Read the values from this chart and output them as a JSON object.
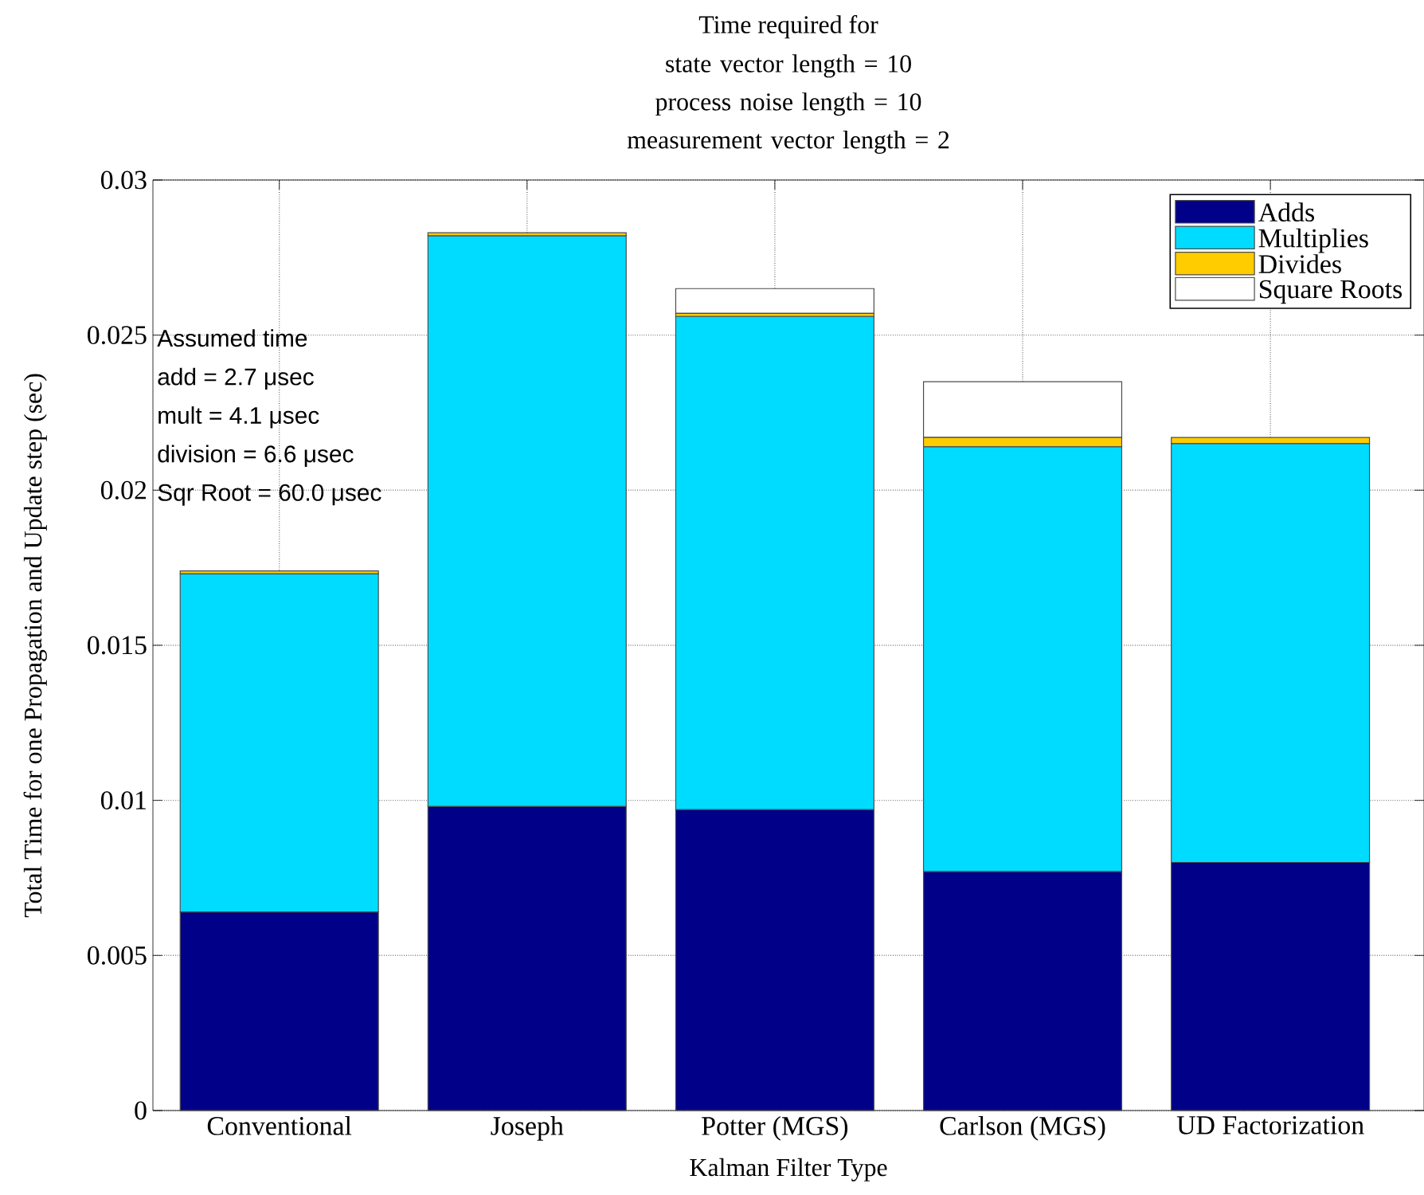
{
  "chart_data": {
    "type": "bar",
    "stacked": true,
    "title": "Time required for",
    "subtitle": "state vector length = 10 process noise length = 10 measurement vector length = 2",
    "xlabel": "Kalman Filter Type",
    "ylabel": "Total Time for one Propagation and Update step (sec)",
    "categories": [
      "Conventional",
      "Joseph",
      "Potter (MGS)",
      "Carlson (MGS)",
      "UD Factorization"
    ],
    "series": [
      {
        "name": "Adds",
        "color": "#000088",
        "values": [
          0.0064,
          0.0098,
          0.0097,
          0.0077,
          0.008
        ]
      },
      {
        "name": "Multiplies",
        "color": "#00dcff",
        "values": [
          0.0109,
          0.0184,
          0.0159,
          0.0137,
          0.0135
        ]
      },
      {
        "name": "Divides",
        "color": "#ffcc00",
        "values": [
          0.0001,
          0.0001,
          0.0001,
          0.0003,
          0.0002
        ]
      },
      {
        "name": "Square Roots",
        "color": "#ffffff",
        "values": [
          0,
          0,
          0.0008,
          0.0018,
          0
        ]
      }
    ],
    "ylim": [
      0,
      0.03
    ],
    "yticks": [
      0,
      0.005,
      0.01,
      0.015,
      0.02,
      0.025,
      0.03
    ],
    "grid": true,
    "legend": "top right",
    "annotations": [
      "Assumed time",
      "add = 2.7 μsec",
      "mult = 4.1 μsec",
      "division = 6.6 μsec",
      "Sqr Root = 60.0 μsec"
    ]
  }
}
